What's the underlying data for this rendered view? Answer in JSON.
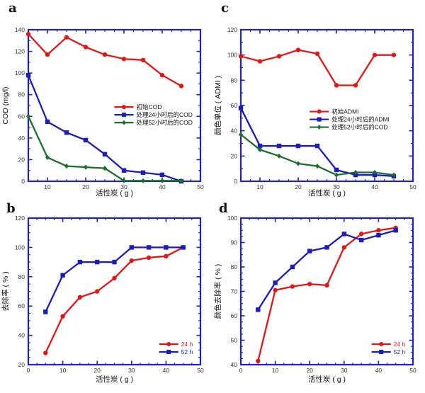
{
  "figure": {
    "background": "#ffffff",
    "frame_color": "#2222bb",
    "tick_label_color": "#333333",
    "text_color": "#111111",
    "series_colors": {
      "red": "#e01717",
      "blue": "#1c1cb8",
      "green": "#1d6e2f"
    }
  },
  "chart_data": [
    {
      "letter": "a",
      "row": "top",
      "type": "line",
      "title": "",
      "xlabel": "活性炭 ( g )",
      "ylabel": "COD (mg/l)",
      "xlim": [
        5,
        50
      ],
      "ylim": [
        0,
        140
      ],
      "xticks": [
        10,
        20,
        30,
        40,
        50
      ],
      "xminor": 2.5,
      "yticks": [
        0,
        20,
        40,
        60,
        80,
        100,
        120,
        140
      ],
      "yminor": 10,
      "grid": false,
      "x": [
        5,
        10,
        15,
        20,
        25,
        30,
        35,
        40,
        45
      ],
      "legend": {
        "fx": 0.5,
        "fy": 0.51,
        "colored_text": false,
        "position": "center-right"
      },
      "series": [
        {
          "name": "初始COD",
          "color": "#e01717",
          "marker": "circle",
          "values": [
            136,
            117,
            133,
            124,
            117,
            113,
            112,
            98,
            88
          ]
        },
        {
          "name": "处理24小时后的COD",
          "color": "#1c1cb8",
          "marker": "square",
          "values": [
            98,
            55,
            45,
            38,
            25,
            10,
            8,
            6,
            0
          ]
        },
        {
          "name": "处理52小时后的COD",
          "color": "#1d6e2f",
          "marker": "diamond",
          "values": [
            60,
            22,
            14,
            13,
            12,
            0.5,
            0.5,
            0.5,
            0.5
          ]
        }
      ]
    },
    {
      "letter": "c",
      "row": "top",
      "type": "line",
      "title": "",
      "xlabel": "活性炭 ( g )",
      "ylabel": "颜色单位 ( ADMI )",
      "xlim": [
        5,
        50
      ],
      "ylim": [
        0,
        120
      ],
      "xticks": [
        10,
        20,
        30,
        40,
        50
      ],
      "xminor": 2.5,
      "yticks": [
        0,
        20,
        40,
        60,
        80,
        100,
        120
      ],
      "yminor": 10,
      "grid": false,
      "x": [
        5,
        10,
        15,
        20,
        25,
        30,
        35,
        40,
        45
      ],
      "legend": {
        "fx": 0.4,
        "fy": 0.54,
        "colored_text": false,
        "position": "center-right"
      },
      "series": [
        {
          "name": "初始ADMI",
          "color": "#e01717",
          "marker": "circle",
          "values": [
            99,
            95,
            99,
            104,
            101,
            76,
            76,
            100,
            100
          ]
        },
        {
          "name": "处理24小时后的ADMI",
          "color": "#1c1cb8",
          "marker": "square",
          "values": [
            58,
            28,
            28,
            28,
            28,
            9,
            5,
            5,
            4
          ]
        },
        {
          "name": "处理52小时后的COD",
          "color": "#1d6e2f",
          "marker": "diamond",
          "values": [
            37,
            25,
            20,
            14,
            12,
            5,
            7,
            7,
            5
          ]
        }
      ]
    },
    {
      "letter": "b",
      "row": "bottom",
      "type": "line",
      "title": "",
      "xlabel": "活性炭 ( g )",
      "ylabel": "去除率 ( % )",
      "xlim": [
        0,
        50
      ],
      "ylim": [
        20,
        120
      ],
      "xticks": [
        0,
        10,
        20,
        30,
        40,
        50
      ],
      "xminor": 2.5,
      "yticks": [
        20,
        40,
        60,
        80,
        100,
        120
      ],
      "yminor": 5,
      "grid": false,
      "x": [
        5,
        10,
        15,
        20,
        25,
        30,
        35,
        40,
        45
      ],
      "legend": {
        "fx": 0.76,
        "fy": 0.86,
        "colored_text": true,
        "position": "bottom-right"
      },
      "series": [
        {
          "name": "24 h",
          "color": "#e01717",
          "marker": "circle",
          "values": [
            28,
            53,
            66,
            70,
            79,
            91,
            93,
            94,
            100
          ]
        },
        {
          "name": "52 h",
          "color": "#1c1cb8",
          "marker": "square",
          "values": [
            56,
            81,
            90,
            90,
            90,
            100,
            100,
            100,
            100
          ]
        }
      ]
    },
    {
      "letter": "d",
      "row": "bottom",
      "type": "line",
      "title": "",
      "xlabel": "活性炭 ( g )",
      "ylabel": "颜色去除率 ( % )",
      "xlim": [
        0,
        50
      ],
      "ylim": [
        40,
        100
      ],
      "xticks": [
        0,
        10,
        20,
        30,
        40,
        50
      ],
      "xminor": 2.5,
      "yticks": [
        40,
        50,
        60,
        70,
        80,
        90,
        100
      ],
      "yminor": 2.5,
      "grid": false,
      "x": [
        5,
        10,
        15,
        20,
        25,
        30,
        35,
        40,
        45
      ],
      "legend": {
        "fx": 0.76,
        "fy": 0.86,
        "colored_text": true,
        "position": "bottom-right"
      },
      "series": [
        {
          "name": "24 h",
          "color": "#e01717",
          "marker": "circle",
          "values": [
            41.5,
            70.5,
            72,
            73,
            72.5,
            88,
            93.5,
            95,
            96
          ]
        },
        {
          "name": "52 h",
          "color": "#1c1cb8",
          "marker": "square",
          "values": [
            62.5,
            73.5,
            80,
            86.5,
            88,
            93.5,
            91,
            93,
            95
          ]
        }
      ]
    }
  ]
}
